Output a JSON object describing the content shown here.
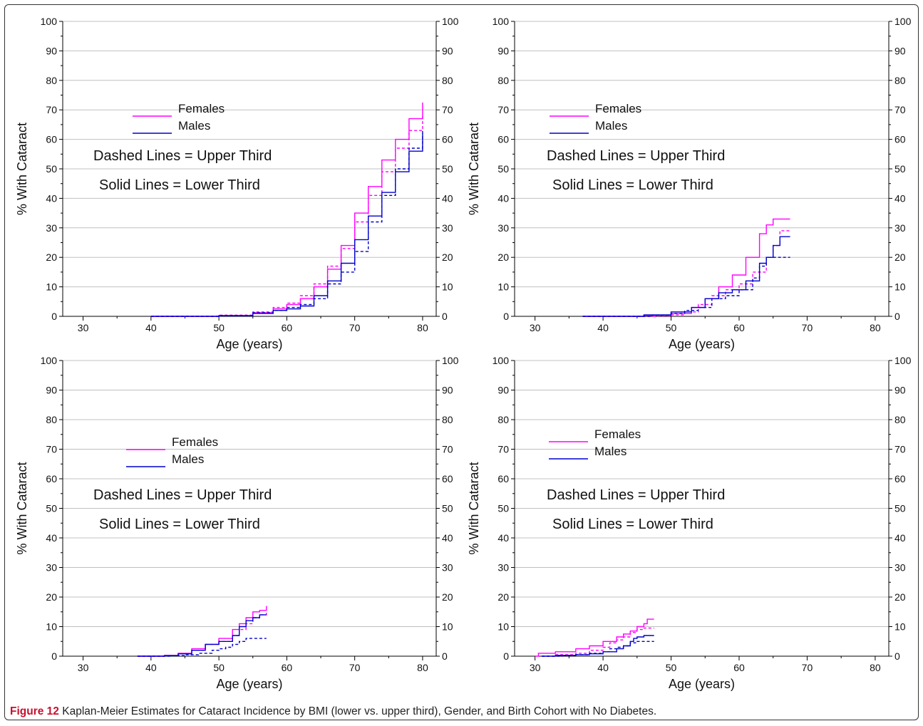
{
  "caption": {
    "figure_label": "Figure 12",
    "text": "Kaplan-Meier Estimates for Cataract Incidence by BMI (lower vs. upper third), Gender, and Birth Cohort with No Diabetes."
  },
  "colors": {
    "female": "#ff00ff",
    "male": "#0000cc",
    "grid": "#c0c0c0",
    "axis": "#000000"
  },
  "chart_data": [
    {
      "type": "line",
      "xlabel": "Age (years)",
      "ylabel": "% With Cataract",
      "xlim": [
        27,
        82
      ],
      "ylim": [
        0,
        100
      ],
      "xticks": [
        30,
        40,
        50,
        60,
        70,
        80
      ],
      "yticks": [
        0,
        10,
        20,
        30,
        40,
        50,
        60,
        70,
        80,
        90,
        100
      ],
      "grid": "horizontal",
      "legend": [
        "Females",
        "Males"
      ],
      "notes": [
        "Dashed Lines = Upper Third",
        "Solid Lines = Lower Third"
      ],
      "series": [
        {
          "name": "Females",
          "dash": false,
          "color": "female",
          "points": [
            [
              40,
              0
            ],
            [
              50,
              0.3
            ],
            [
              55,
              1.2
            ],
            [
              58,
              2.5
            ],
            [
              60,
              4
            ],
            [
              62,
              6
            ],
            [
              64,
              10
            ],
            [
              66,
              16
            ],
            [
              68,
              24
            ],
            [
              70,
              35
            ],
            [
              72,
              44
            ],
            [
              74,
              53
            ],
            [
              76,
              60
            ],
            [
              78,
              67
            ],
            [
              80,
              72.5
            ]
          ]
        },
        {
          "name": "Females",
          "dash": true,
          "color": "female",
          "points": [
            [
              40,
              0
            ],
            [
              50,
              0.4
            ],
            [
              55,
              1.5
            ],
            [
              58,
              3
            ],
            [
              60,
              4.5
            ],
            [
              62,
              7
            ],
            [
              64,
              11
            ],
            [
              66,
              17
            ],
            [
              68,
              23
            ],
            [
              70,
              32
            ],
            [
              72,
              41
            ],
            [
              74,
              49
            ],
            [
              76,
              57
            ],
            [
              78,
              63
            ],
            [
              80,
              68
            ]
          ]
        },
        {
          "name": "Males",
          "dash": false,
          "color": "male",
          "points": [
            [
              40,
              0
            ],
            [
              50,
              0.2
            ],
            [
              55,
              1
            ],
            [
              58,
              2
            ],
            [
              60,
              2.5
            ],
            [
              62,
              3.5
            ],
            [
              64,
              7
            ],
            [
              66,
              12
            ],
            [
              68,
              18
            ],
            [
              70,
              26
            ],
            [
              72,
              34
            ],
            [
              74,
              42
            ],
            [
              76,
              49
            ],
            [
              78,
              56
            ],
            [
              80,
              62
            ]
          ]
        },
        {
          "name": "Males",
          "dash": true,
          "color": "male",
          "points": [
            [
              40,
              0
            ],
            [
              50,
              0.3
            ],
            [
              55,
              1.2
            ],
            [
              58,
              2
            ],
            [
              60,
              3
            ],
            [
              62,
              4
            ],
            [
              64,
              6
            ],
            [
              66,
              11
            ],
            [
              68,
              15
            ],
            [
              70,
              22
            ],
            [
              72,
              32
            ],
            [
              74,
              41
            ],
            [
              76,
              50
            ],
            [
              78,
              57
            ],
            [
              80,
              63
            ]
          ]
        }
      ]
    },
    {
      "type": "line",
      "xlabel": "Age (years)",
      "ylabel": "% With Cataract",
      "xlim": [
        27,
        82
      ],
      "ylim": [
        0,
        100
      ],
      "xticks": [
        30,
        40,
        50,
        60,
        70,
        80
      ],
      "yticks": [
        0,
        10,
        20,
        30,
        40,
        50,
        60,
        70,
        80,
        90,
        100
      ],
      "grid": "horizontal",
      "legend": [
        "Females",
        "Males"
      ],
      "notes": [
        "Dashed Lines = Upper Third",
        "Solid Lines = Lower Third"
      ],
      "series": [
        {
          "name": "Females",
          "dash": false,
          "color": "female",
          "points": [
            [
              37,
              0
            ],
            [
              46,
              0.3
            ],
            [
              50,
              1
            ],
            [
              53,
              3
            ],
            [
              55,
              6
            ],
            [
              57,
              10
            ],
            [
              59,
              14
            ],
            [
              61,
              20
            ],
            [
              63,
              28
            ],
            [
              64,
              31
            ],
            [
              65,
              33
            ],
            [
              67.5,
              33
            ]
          ]
        },
        {
          "name": "Females",
          "dash": true,
          "color": "female",
          "points": [
            [
              37,
              0
            ],
            [
              48,
              0.2
            ],
            [
              50,
              0.5
            ],
            [
              52,
              1.5
            ],
            [
              54,
              4
            ],
            [
              56,
              7
            ],
            [
              58,
              9
            ],
            [
              60,
              11
            ],
            [
              62,
              15
            ],
            [
              64,
              20
            ],
            [
              65,
              24
            ],
            [
              66,
              29
            ],
            [
              67.5,
              29
            ]
          ]
        },
        {
          "name": "Males",
          "dash": false,
          "color": "male",
          "points": [
            [
              37,
              0
            ],
            [
              46,
              0.5
            ],
            [
              50,
              1.5
            ],
            [
              53,
              3
            ],
            [
              55,
              6
            ],
            [
              57,
              8
            ],
            [
              59,
              9
            ],
            [
              61,
              12
            ],
            [
              63,
              18
            ],
            [
              64,
              20
            ],
            [
              65,
              24
            ],
            [
              66,
              27
            ],
            [
              67.5,
              27
            ]
          ]
        },
        {
          "name": "Males",
          "dash": true,
          "color": "male",
          "points": [
            [
              37,
              0
            ],
            [
              47,
              0.4
            ],
            [
              50,
              1
            ],
            [
              52,
              2
            ],
            [
              54,
              3
            ],
            [
              56,
              6
            ],
            [
              58,
              7
            ],
            [
              60,
              9
            ],
            [
              62,
              13
            ],
            [
              63,
              17
            ],
            [
              64,
              20
            ],
            [
              67.5,
              20
            ]
          ]
        }
      ]
    },
    {
      "type": "line",
      "xlabel": "Age (years)",
      "ylabel": "% With Cataract",
      "xlim": [
        27,
        82
      ],
      "ylim": [
        0,
        100
      ],
      "xticks": [
        30,
        40,
        50,
        60,
        70,
        80
      ],
      "yticks": [
        0,
        10,
        20,
        30,
        40,
        50,
        60,
        70,
        80,
        90,
        100
      ],
      "grid": "horizontal",
      "legend": [
        "Females",
        "Males"
      ],
      "notes": [
        "Dashed Lines = Upper Third",
        "Solid Lines = Lower Third"
      ],
      "series": [
        {
          "name": "Females",
          "dash": false,
          "color": "female",
          "points": [
            [
              38,
              0
            ],
            [
              42,
              0.3
            ],
            [
              44,
              1
            ],
            [
              46,
              2.5
            ],
            [
              48,
              4
            ],
            [
              50,
              6
            ],
            [
              52,
              9
            ],
            [
              53,
              11
            ],
            [
              54,
              13
            ],
            [
              55,
              15
            ],
            [
              56,
              15.5
            ],
            [
              57,
              17
            ]
          ]
        },
        {
          "name": "Females",
          "dash": true,
          "color": "female",
          "points": [
            [
              38,
              0
            ],
            [
              42,
              0.2
            ],
            [
              44,
              0.8
            ],
            [
              46,
              2
            ],
            [
              48,
              4
            ],
            [
              50,
              5
            ],
            [
              52,
              7
            ],
            [
              53,
              9
            ],
            [
              54,
              11
            ],
            [
              55,
              13
            ],
            [
              56,
              14
            ],
            [
              57,
              15
            ]
          ]
        },
        {
          "name": "Males",
          "dash": false,
          "color": "male",
          "points": [
            [
              38,
              0
            ],
            [
              42,
              0.2
            ],
            [
              44,
              0.8
            ],
            [
              46,
              2
            ],
            [
              48,
              4
            ],
            [
              50,
              5
            ],
            [
              52,
              7
            ],
            [
              53,
              10
            ],
            [
              54,
              12
            ],
            [
              55,
              13
            ],
            [
              56,
              14
            ],
            [
              57,
              14
            ]
          ]
        },
        {
          "name": "Males",
          "dash": true,
          "color": "male",
          "points": [
            [
              38,
              0
            ],
            [
              43,
              0.2
            ],
            [
              45,
              0.5
            ],
            [
              47,
              1
            ],
            [
              49,
              2
            ],
            [
              50,
              2.5
            ],
            [
              51,
              3
            ],
            [
              52,
              4
            ],
            [
              53,
              5
            ],
            [
              54,
              6
            ],
            [
              57,
              6
            ]
          ]
        }
      ]
    },
    {
      "type": "line",
      "xlabel": "Age (years)",
      "ylabel": "% With Cataract",
      "xlim": [
        27,
        82
      ],
      "ylim": [
        0,
        100
      ],
      "xticks": [
        30,
        40,
        50,
        60,
        70,
        80
      ],
      "yticks": [
        0,
        10,
        20,
        30,
        40,
        50,
        60,
        70,
        80,
        90,
        100
      ],
      "grid": "horizontal",
      "legend": [
        "Females",
        "Males"
      ],
      "notes": [
        "Dashed Lines = Upper Third",
        "Solid Lines = Lower Third"
      ],
      "series": [
        {
          "name": "Females",
          "dash": false,
          "color": "female",
          "points": [
            [
              30,
              0
            ],
            [
              30.5,
              1
            ],
            [
              33,
              1.5
            ],
            [
              36,
              2.5
            ],
            [
              38,
              3.5
            ],
            [
              40,
              5
            ],
            [
              42,
              6.5
            ],
            [
              43,
              7.5
            ],
            [
              44,
              8.5
            ],
            [
              45,
              10
            ],
            [
              46,
              11
            ],
            [
              46.5,
              12.5
            ],
            [
              47.5,
              12.5
            ]
          ]
        },
        {
          "name": "Females",
          "dash": true,
          "color": "female",
          "points": [
            [
              31,
              0
            ],
            [
              33,
              0.5
            ],
            [
              36,
              1
            ],
            [
              38,
              2
            ],
            [
              40,
              3
            ],
            [
              41,
              4.5
            ],
            [
              42,
              5.5
            ],
            [
              43,
              6.5
            ],
            [
              44,
              8
            ],
            [
              45,
              9
            ],
            [
              46,
              9.5
            ],
            [
              47.5,
              9.5
            ]
          ]
        },
        {
          "name": "Males",
          "dash": false,
          "color": "male",
          "points": [
            [
              31,
              0
            ],
            [
              33,
              0.3
            ],
            [
              36,
              0.5
            ],
            [
              38,
              0.8
            ],
            [
              40,
              1.5
            ],
            [
              42,
              2.5
            ],
            [
              43,
              3.5
            ],
            [
              44,
              5
            ],
            [
              44.5,
              6
            ],
            [
              45,
              6.5
            ],
            [
              46,
              7
            ],
            [
              47.5,
              7
            ]
          ]
        },
        {
          "name": "Males",
          "dash": true,
          "color": "male",
          "points": [
            [
              31,
              0
            ],
            [
              34,
              0.2
            ],
            [
              36,
              0.5
            ],
            [
              38,
              1
            ],
            [
              40,
              1.5
            ],
            [
              41,
              2.5
            ],
            [
              42,
              3
            ],
            [
              43,
              3.5
            ],
            [
              44,
              4.5
            ],
            [
              45,
              5
            ],
            [
              47.5,
              5
            ]
          ]
        }
      ]
    }
  ]
}
